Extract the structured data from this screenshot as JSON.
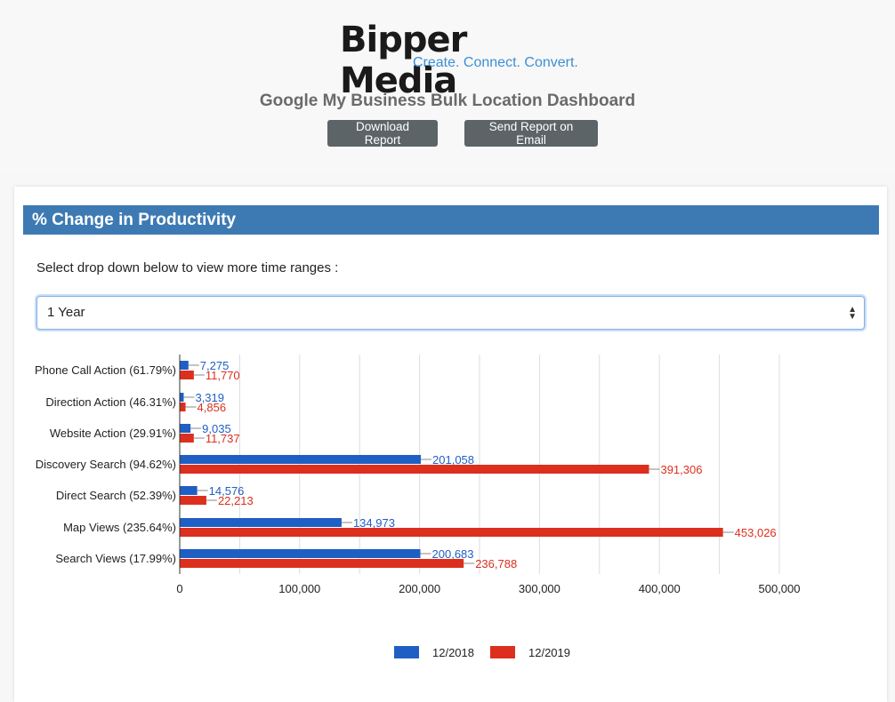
{
  "header": {
    "logo": {
      "text": "Bipper Media",
      "tagline": "Create. Connect. Convert."
    },
    "title": "Google My Business Bulk Location Dashboard",
    "download_label": "Download Report",
    "email_label": "Send Report on Email"
  },
  "card": {
    "title": "% Change in Productivity",
    "hint": "Select drop down below to view more time ranges :",
    "select_value": "1 Year"
  },
  "chart_data": {
    "type": "bar",
    "orientation": "horizontal",
    "categories": [
      "Phone Call Action (61.79%)",
      "Direction Action (46.31%)",
      "Website Action (29.91%)",
      "Discovery Search (94.62%)",
      "Direct Search (52.39%)",
      "Map Views (235.64%)",
      "Search Views (17.99%)"
    ],
    "series": [
      {
        "name": "12/2018",
        "color": "#1f5fc4",
        "values": [
          7275,
          3319,
          9035,
          201058,
          14576,
          134973,
          200683
        ],
        "labels": [
          "7,275",
          "3,319",
          "9,035",
          "201,058",
          "14,576",
          "134,973",
          "200,683"
        ]
      },
      {
        "name": "12/2019",
        "color": "#dc2f1e",
        "values": [
          11770,
          4856,
          11737,
          391306,
          22213,
          453026,
          236788
        ],
        "labels": [
          "11,770",
          "4,856",
          "11,737",
          "391,306",
          "22,213",
          "453,026",
          "236,788"
        ]
      }
    ],
    "xlim": [
      0,
      500000
    ],
    "xticks": [
      0,
      100000,
      200000,
      300000,
      400000,
      500000
    ],
    "xtick_labels": [
      "0",
      "100,000",
      "200,000",
      "300,000",
      "400,000",
      "500,000"
    ],
    "grid": true,
    "legend": "bottom"
  }
}
